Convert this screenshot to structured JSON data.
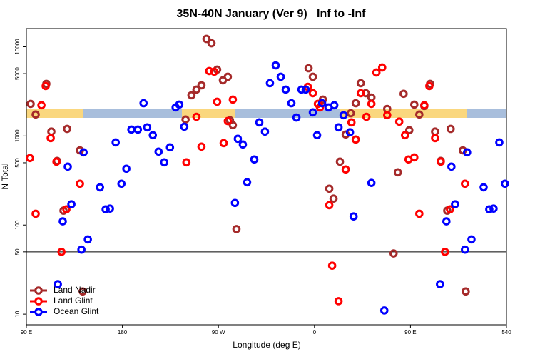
{
  "chart_data": {
    "type": "scatter",
    "title": "35N-40N January (Ver 9)   Inf to -Inf",
    "xlabel": "Longitude (deg E)",
    "ylabel": "N Total",
    "xlim": [
      90,
      540
    ],
    "ylim": [
      7.6,
      16000
    ],
    "ylog": true,
    "xticks": [
      {
        "value": 90,
        "label": "90 E"
      },
      180,
      {
        "value": 270,
        "label": "90 W"
      },
      {
        "value": 360,
        "label": "0"
      },
      {
        "value": 450,
        "label": "90 E"
      },
      540
    ],
    "yticks": [
      10,
      50,
      100,
      500,
      1000,
      5000,
      10000
    ],
    "hline": 50,
    "legend": "lower left",
    "series": [
      {
        "name": "Land Nadir",
        "color": "#a52a2a",
        "x": [
          94.0,
          98.7,
          108.7,
          113.4,
          118.8,
          128.2,
          124.8,
          140.2,
          142.8,
          239.2,
          244.7,
          249.4,
          254.1,
          258.8,
          263.5,
          268.8,
          274.2,
          278.8,
          280.8,
          283.5,
          286.9,
          354.5,
          358.5,
          367.9,
          373.9,
          377.9,
          383.9,
          389.3,
          394.0,
          398.7,
          403.4,
          408.1,
          413.4,
          428.2,
          434.2,
          438.2,
          443.6,
          448.9,
          453.6,
          458.3,
          463.0,
          468.4,
          473.1,
          478.4,
          484.5,
          487.7,
          499.1,
          501.8
        ],
        "values": [
          2290,
          1740,
          3840,
          1120,
          525,
          1200,
          145,
          690,
          18,
          1530,
          2860,
          3310,
          3700,
          12250,
          10960,
          5550,
          4210,
          4610,
          1500,
          1320,
          90,
          5750,
          4610,
          2560,
          256,
          198,
          515,
          1040,
          1800,
          2330,
          3910,
          3020,
          2700,
          2010,
          48,
          391,
          2970,
          1160,
          2250,
          1740,
          2170,
          3840,
          1120,
          525,
          145,
          1200,
          690,
          18
        ]
      },
      {
        "name": "Land Glint",
        "color": "#ff0000",
        "x": [
          93.3,
          98.7,
          104.1,
          108.1,
          112.8,
          118.2,
          122.9,
          127.5,
          140.2,
          240.0,
          249.4,
          254.1,
          261.4,
          266.1,
          268.8,
          274.9,
          278.8,
          283.5,
          353.8,
          358.5,
          363.2,
          365.2,
          373.9,
          376.6,
          382.6,
          389.3,
          394.7,
          398.7,
          403.4,
          408.7,
          413.4,
          418.1,
          423.5,
          428.2,
          439.5,
          444.9,
          448.2,
          453.6,
          458.3,
          463.0,
          467.7,
          473.1,
          478.4,
          482.4,
          487.1,
          501.1
        ],
        "values": [
          565,
          134,
          2210,
          3630,
          946,
          515,
          50,
          150,
          291,
          506,
          1640,
          759,
          5350,
          5250,
          2420,
          832,
          1470,
          2560,
          3560,
          3020,
          2290,
          2090,
          167,
          35,
          14,
          421,
          1420,
          912,
          3020,
          1640,
          2290,
          5150,
          5860,
          1710,
          1450,
          1020,
          545,
          575,
          134,
          2210,
          3630,
          946,
          515,
          50,
          150,
          291
        ]
      },
      {
        "name": "Ocean Glint",
        "color": "#0000ff",
        "x": [
          119.5,
          124.1,
          128.8,
          132.2,
          141.6,
          143.6,
          147.6,
          159.0,
          164.3,
          168.3,
          173.7,
          179.1,
          183.7,
          188.4,
          194.5,
          199.8,
          203.2,
          208.5,
          213.9,
          219.2,
          224.6,
          229.9,
          233.3,
          238.0,
          285.5,
          288.2,
          292.9,
          296.9,
          303.6,
          308.3,
          313.6,
          318.3,
          323.7,
          328.4,
          333.1,
          338.4,
          343.1,
          347.8,
          351.8,
          358.5,
          362.5,
          367.2,
          373.2,
          378.6,
          382.6,
          387.3,
          393.3,
          396.7,
          413.4,
          425.5,
          477.7,
          483.7,
          488.4,
          491.8,
          501.1,
          503.1,
          507.2,
          518.6,
          523.9,
          527.9,
          533.3,
          538.6
        ],
        "values": [
          21.7,
          110,
          453,
          171,
          53,
          655,
          69,
          265,
          150,
          153,
          847,
          291,
          429,
          1180,
          1180,
          2330,
          1250,
          1020,
          667,
          506,
          745,
          2090,
          2250,
          1270,
          177,
          929,
          802,
          302,
          545,
          1420,
          1120,
          3910,
          6190,
          4610,
          3310,
          2330,
          1610,
          3310,
          3310,
          1840,
          1020,
          2330,
          2090,
          2210,
          1250,
          1710,
          1100,
          125,
          297,
          11,
          21.7,
          110,
          453,
          171,
          53,
          655,
          69,
          265,
          150,
          153,
          847,
          291
        ]
      }
    ]
  }
}
